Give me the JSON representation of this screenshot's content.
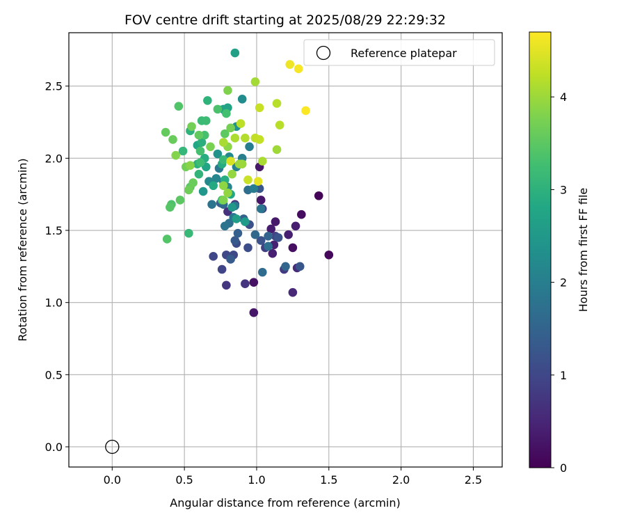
{
  "chart_data": {
    "type": "scatter",
    "title": "FOV centre drift starting at 2025/08/29 22:29:32",
    "xlabel": "Angular distance from reference (arcmin)",
    "ylabel": "Rotation from reference (arcmin)",
    "xlim": [
      -0.3,
      2.7
    ],
    "ylim": [
      -0.14,
      2.87
    ],
    "xticks": [
      0.0,
      0.5,
      1.0,
      1.5,
      2.0,
      2.5
    ],
    "xtick_labels": [
      "0.0",
      "0.5",
      "1.0",
      "1.5",
      "2.0",
      "2.5"
    ],
    "yticks": [
      0.0,
      0.5,
      1.0,
      1.5,
      2.0,
      2.5
    ],
    "ytick_labels": [
      "0.0",
      "0.5",
      "1.0",
      "1.5",
      "2.0",
      "2.5"
    ],
    "grid": true,
    "legend": {
      "position": "top-right",
      "label": "Reference platepar"
    },
    "reference_point": {
      "x": 0.0,
      "y": 0.0,
      "label": "Reference platepar"
    },
    "colorbar": {
      "label": "Hours from first FF file",
      "range": [
        0,
        4.7
      ],
      "ticks": [
        0,
        1,
        2,
        3,
        4
      ],
      "tick_labels": [
        "0",
        "1",
        "2",
        "3",
        "4"
      ],
      "colormap": "viridis"
    },
    "points": [
      [
        1.43,
        1.74,
        0.05
      ],
      [
        1.5,
        1.33,
        0.1
      ],
      [
        1.31,
        1.61,
        0.15
      ],
      [
        1.25,
        1.38,
        0.18
      ],
      [
        0.98,
        1.14,
        0.22
      ],
      [
        0.98,
        0.93,
        0.28
      ],
      [
        1.02,
        1.94,
        0.3
      ],
      [
        1.03,
        1.71,
        0.3
      ],
      [
        1.13,
        1.56,
        0.32
      ],
      [
        1.1,
        1.51,
        0.35
      ],
      [
        1.27,
        1.53,
        0.38
      ],
      [
        1.22,
        1.47,
        0.4
      ],
      [
        1.11,
        1.34,
        0.42
      ],
      [
        1.12,
        1.4,
        0.45
      ],
      [
        1.25,
        1.07,
        0.55
      ],
      [
        1.28,
        1.24,
        0.6
      ],
      [
        0.85,
        1.68,
        0.62
      ],
      [
        0.8,
        1.63,
        0.66
      ],
      [
        0.92,
        1.13,
        0.7
      ],
      [
        0.79,
        1.12,
        0.75
      ],
      [
        1.19,
        1.23,
        0.8
      ],
      [
        1.04,
        1.65,
        0.85
      ],
      [
        1.06,
        1.38,
        0.88
      ],
      [
        1.13,
        1.46,
        0.92
      ],
      [
        0.76,
        1.23,
        0.96
      ],
      [
        0.7,
        1.32,
        1.0
      ],
      [
        0.79,
        1.33,
        1.02
      ],
      [
        0.84,
        1.33,
        1.05
      ],
      [
        0.86,
        1.41,
        1.08
      ],
      [
        0.94,
        1.38,
        1.1
      ],
      [
        0.95,
        1.54,
        1.15
      ],
      [
        1.03,
        1.43,
        1.18
      ],
      [
        1.15,
        1.45,
        1.2
      ],
      [
        1.3,
        1.25,
        1.25
      ],
      [
        1.02,
        1.79,
        1.25
      ],
      [
        0.85,
        1.43,
        1.3
      ],
      [
        0.82,
        1.3,
        1.35
      ],
      [
        0.75,
        1.69,
        1.4
      ],
      [
        0.87,
        1.48,
        1.42
      ],
      [
        0.91,
        1.58,
        1.45
      ],
      [
        1.08,
        1.46,
        1.5
      ],
      [
        1.2,
        1.25,
        1.55
      ],
      [
        0.77,
        1.68,
        1.58
      ],
      [
        0.99,
        1.47,
        1.6
      ],
      [
        1.04,
        1.21,
        1.65
      ],
      [
        1.08,
        1.39,
        1.7
      ],
      [
        0.94,
        1.78,
        1.72
      ],
      [
        0.81,
        1.55,
        1.75
      ],
      [
        0.69,
        1.68,
        1.78
      ],
      [
        0.78,
        1.53,
        1.8
      ],
      [
        0.84,
        1.59,
        1.82
      ],
      [
        1.03,
        1.65,
        1.85
      ],
      [
        0.77,
        1.84,
        1.88
      ],
      [
        0.74,
        1.93,
        1.9
      ],
      [
        0.85,
        1.67,
        1.92
      ],
      [
        0.98,
        1.79,
        1.95
      ],
      [
        0.95,
        2.08,
        1.98
      ],
      [
        0.9,
        2.0,
        2.0
      ],
      [
        0.86,
        1.94,
        2.05
      ],
      [
        0.8,
        1.8,
        2.1
      ],
      [
        0.72,
        1.86,
        2.15
      ],
      [
        0.67,
        1.84,
        2.18
      ],
      [
        0.81,
        2.01,
        2.2
      ],
      [
        0.9,
        2.41,
        2.25
      ],
      [
        0.78,
        2.33,
        2.3
      ],
      [
        0.86,
        2.22,
        2.35
      ],
      [
        0.73,
        2.03,
        2.4
      ],
      [
        0.63,
        1.77,
        2.45
      ],
      [
        0.83,
        1.66,
        2.5
      ],
      [
        0.92,
        1.56,
        2.55
      ],
      [
        0.86,
        1.58,
        2.6
      ],
      [
        0.85,
        2.73,
        2.65
      ],
      [
        0.77,
        2.34,
        2.7
      ],
      [
        0.8,
        2.35,
        2.72
      ],
      [
        0.65,
        1.94,
        2.75
      ],
      [
        0.59,
        2.09,
        2.78
      ],
      [
        0.82,
        1.75,
        2.8
      ],
      [
        0.7,
        1.81,
        2.85
      ],
      [
        0.76,
        1.96,
        2.88
      ],
      [
        0.78,
        1.85,
        2.9
      ],
      [
        0.64,
        2.0,
        2.92
      ],
      [
        0.62,
        2.11,
        2.95
      ],
      [
        0.59,
        1.96,
        2.98
      ],
      [
        0.54,
        2.19,
        3.0
      ],
      [
        0.66,
        2.4,
        3.02
      ],
      [
        0.6,
        1.89,
        3.05
      ],
      [
        0.49,
        2.05,
        3.1
      ],
      [
        0.53,
        1.48,
        3.12
      ],
      [
        0.77,
        1.99,
        3.15
      ],
      [
        0.62,
        2.26,
        3.18
      ],
      [
        0.65,
        2.26,
        3.2
      ],
      [
        0.61,
        1.97,
        3.22
      ],
      [
        0.76,
        1.71,
        3.25
      ],
      [
        0.79,
        2.31,
        3.28
      ],
      [
        0.61,
        2.05,
        3.3
      ],
      [
        0.64,
        2.16,
        3.32
      ],
      [
        0.73,
        2.34,
        3.35
      ],
      [
        0.41,
        1.68,
        3.38
      ],
      [
        0.46,
        2.36,
        3.4
      ],
      [
        0.38,
        1.44,
        3.42
      ],
      [
        0.4,
        1.66,
        3.45
      ],
      [
        0.54,
        1.8,
        3.48
      ],
      [
        0.47,
        1.71,
        3.5
      ],
      [
        0.78,
        2.17,
        3.52
      ],
      [
        0.6,
        2.16,
        3.55
      ],
      [
        0.37,
        2.18,
        3.58
      ],
      [
        0.42,
        2.13,
        3.6
      ],
      [
        0.56,
        1.83,
        3.62
      ],
      [
        0.53,
        1.78,
        3.65
      ],
      [
        0.51,
        1.94,
        3.68
      ],
      [
        0.55,
        2.22,
        3.7
      ],
      [
        0.82,
        2.21,
        3.72
      ],
      [
        0.68,
        2.08,
        3.75
      ],
      [
        0.77,
        1.71,
        3.78
      ],
      [
        0.8,
        2.47,
        3.8
      ],
      [
        0.44,
        2.02,
        3.82
      ],
      [
        0.54,
        1.95,
        3.85
      ],
      [
        0.8,
        2.08,
        3.88
      ],
      [
        0.77,
        1.81,
        3.9
      ],
      [
        0.8,
        1.76,
        3.92
      ],
      [
        0.83,
        1.89,
        3.95
      ],
      [
        0.9,
        1.96,
        3.98
      ],
      [
        0.88,
        1.96,
        4.0
      ],
      [
        1.14,
        2.06,
        4.02
      ],
      [
        0.99,
        2.53,
        4.05
      ],
      [
        0.77,
        2.11,
        4.08
      ],
      [
        1.04,
        1.98,
        4.1
      ],
      [
        0.85,
        2.14,
        4.12
      ],
      [
        0.92,
        2.14,
        4.15
      ],
      [
        1.14,
        2.38,
        4.18
      ],
      [
        1.16,
        2.23,
        4.2
      ],
      [
        0.89,
        2.24,
        4.22
      ],
      [
        0.99,
        2.14,
        4.25
      ],
      [
        1.02,
        2.13,
        4.28
      ],
      [
        1.02,
        2.35,
        4.3
      ],
      [
        0.94,
        1.85,
        4.32
      ],
      [
        0.82,
        1.98,
        4.42
      ],
      [
        1.01,
        1.84,
        4.52
      ],
      [
        1.23,
        2.65,
        4.58
      ],
      [
        1.29,
        2.62,
        4.65
      ],
      [
        1.34,
        2.33,
        4.68
      ]
    ]
  }
}
